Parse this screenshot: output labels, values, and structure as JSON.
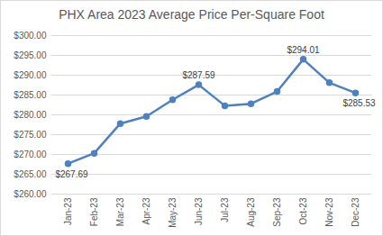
{
  "chart_data": {
    "type": "line",
    "title": "PHX Area 2023 Average Price Per-Square Foot",
    "categories": [
      "Jan-23",
      "Feb-23",
      "Mar-23",
      "Apr-23",
      "May-23",
      "Jun-23",
      "Jul-23",
      "Aug-23",
      "Sep-23",
      "Oct-23",
      "Nov-23",
      "Dec-23"
    ],
    "values": [
      267.69,
      270.3,
      277.8,
      279.6,
      283.8,
      287.59,
      282.3,
      282.8,
      285.9,
      294.01,
      288.1,
      285.53
    ],
    "value_labels": [
      "$267.69",
      null,
      null,
      null,
      null,
      "$287.59",
      null,
      null,
      null,
      "$294.01",
      null,
      "$285.53"
    ],
    "data_labels": true,
    "color": "#4f81bd",
    "marker": "circle",
    "line_style": "solid",
    "ylim": [
      260,
      300
    ],
    "yticks": [
      {
        "value": 260,
        "label": "$260.00"
      },
      {
        "value": 265,
        "label": "$265.00"
      },
      {
        "value": 270,
        "label": "$270.00"
      },
      {
        "value": 275,
        "label": "$275.00"
      },
      {
        "value": 280,
        "label": "$280.00"
      },
      {
        "value": 285,
        "label": "$285.00"
      },
      {
        "value": 290,
        "label": "$290.00"
      },
      {
        "value": 295,
        "label": "$295.00"
      },
      {
        "value": 300,
        "label": "$300.00"
      }
    ],
    "grid": true
  }
}
